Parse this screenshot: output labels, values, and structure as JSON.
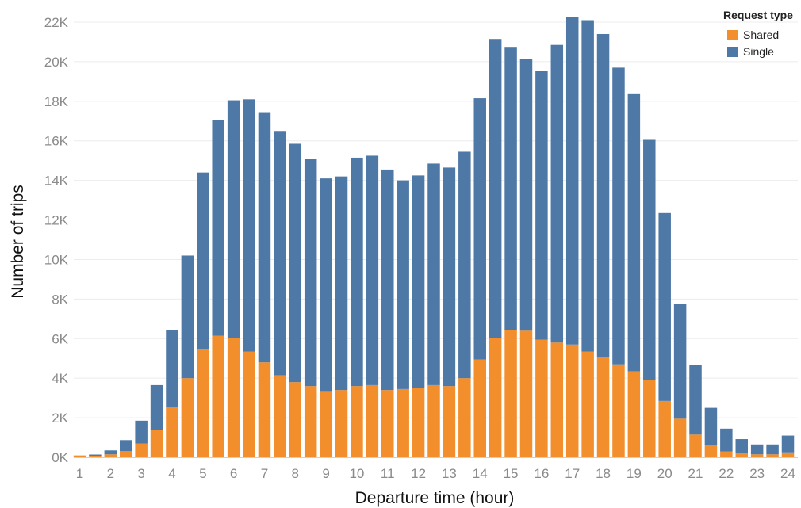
{
  "chart_data": {
    "type": "bar",
    "stacked": true,
    "xlabel": "Departure time (hour)",
    "ylabel": "Number of trips",
    "ylim": [
      0,
      22000
    ],
    "yticks": [
      0,
      2000,
      4000,
      6000,
      8000,
      10000,
      12000,
      14000,
      16000,
      18000,
      20000,
      22000
    ],
    "ytick_labels": [
      "0K",
      "2K",
      "4K",
      "6K",
      "8K",
      "10K",
      "12K",
      "14K",
      "16K",
      "18K",
      "20K",
      "22K"
    ],
    "xticks": [
      1,
      2,
      3,
      4,
      5,
      6,
      7,
      8,
      9,
      10,
      11,
      12,
      13,
      14,
      15,
      16,
      17,
      18,
      19,
      20,
      21,
      22,
      23,
      24
    ],
    "xtick_labels": [
      "1",
      "2",
      "3",
      "4",
      "5",
      "6",
      "7",
      "8",
      "9",
      "10",
      "11",
      "12",
      "13",
      "14",
      "15",
      "16",
      "17",
      "18",
      "19",
      "20",
      "21",
      "22",
      "23",
      "24"
    ],
    "x": [
      1,
      1.5,
      2,
      2.5,
      3,
      3.5,
      4,
      4.5,
      5,
      5.5,
      6,
      6.5,
      7,
      7.5,
      8,
      8.5,
      9,
      9.5,
      10,
      10.5,
      11,
      11.5,
      12,
      12.5,
      13,
      13.5,
      14,
      14.5,
      15,
      15.5,
      16,
      16.5,
      17,
      17.5,
      18,
      18.5,
      19,
      19.5,
      20,
      20.5,
      21,
      21.5,
      22,
      22.5,
      23,
      23.5,
      24
    ],
    "grid": "horizontal",
    "legend_title": "Request type",
    "legend_position": "top-right",
    "series": [
      {
        "name": "Shared",
        "color": "#F28E2B",
        "values": [
          60,
          80,
          150,
          320,
          700,
          1400,
          2550,
          4000,
          5450,
          6150,
          6050,
          5350,
          4800,
          4150,
          3800,
          3600,
          3350,
          3400,
          3600,
          3650,
          3400,
          3450,
          3500,
          3650,
          3600,
          4000,
          4950,
          6050,
          6450,
          6400,
          5950,
          5800,
          5700,
          5350,
          5050,
          4700,
          4350,
          3900,
          2850,
          1950,
          1150,
          600,
          300,
          220,
          150,
          150,
          250
        ]
      },
      {
        "name": "Single",
        "color": "#4E79A7",
        "values": [
          30,
          60,
          200,
          550,
          1150,
          2250,
          3900,
          6200,
          8950,
          10900,
          12000,
          12750,
          12650,
          12350,
          12050,
          11500,
          10750,
          10800,
          11550,
          11600,
          11150,
          10550,
          10750,
          11200,
          11050,
          11450,
          13200,
          15100,
          14300,
          13750,
          13600,
          15050,
          16550,
          16750,
          16350,
          15000,
          14050,
          12150,
          9500,
          5800,
          3500,
          1900,
          1150,
          700,
          500,
          500,
          850
        ]
      }
    ]
  }
}
